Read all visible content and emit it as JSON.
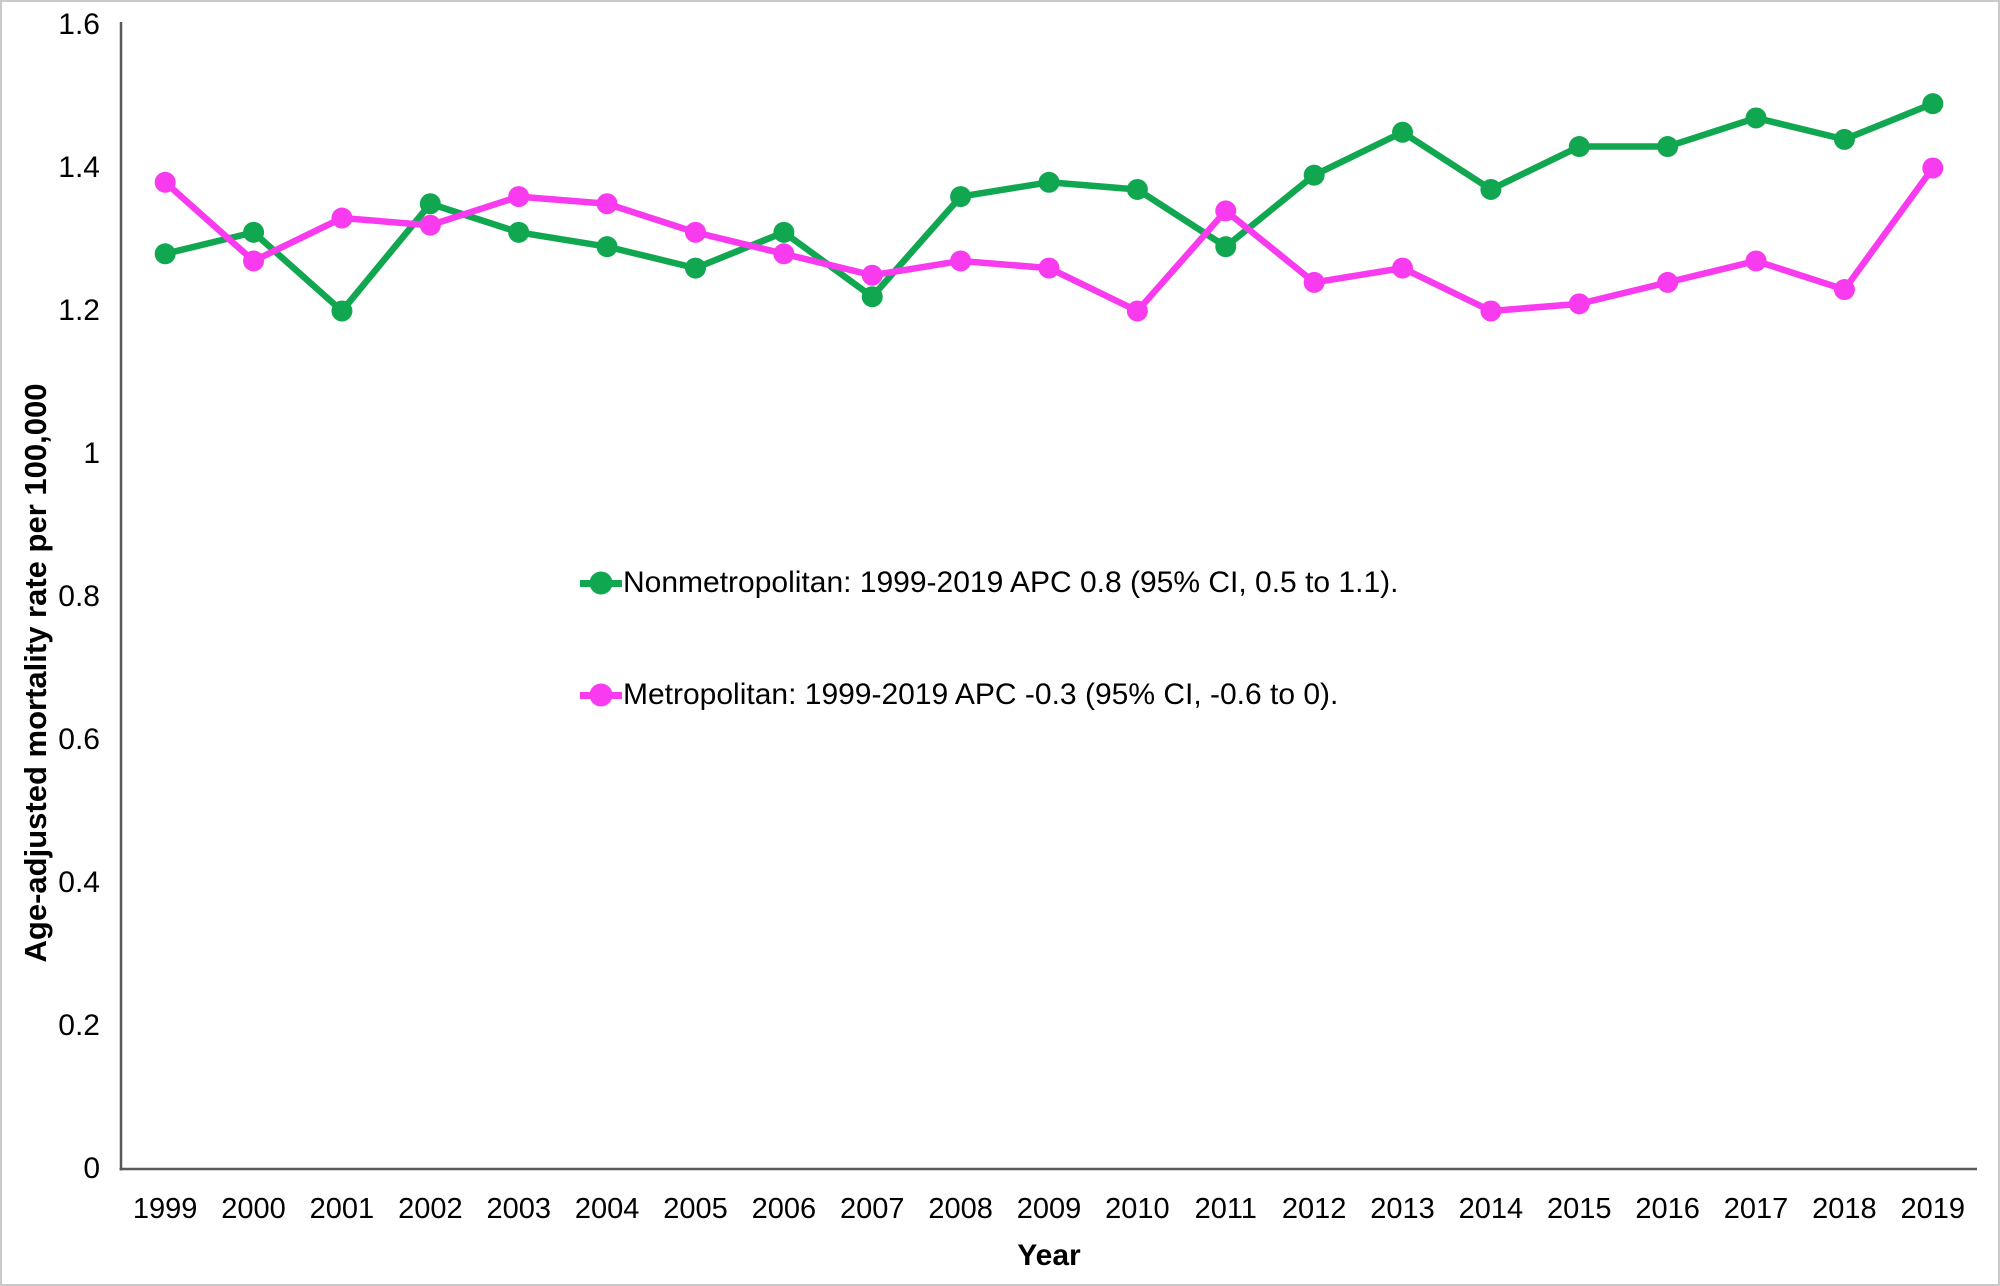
{
  "figure": {
    "background": "#ffffff",
    "border_color": "#c9c9c9",
    "axis_color": "#595959",
    "text_color": "#000000"
  },
  "chart_data": {
    "type": "line",
    "title": "",
    "xlabel": "Year",
    "ylabel": "Age-adjusted mortality rate per 100,000",
    "x": [
      "1999",
      "2000",
      "2001",
      "2002",
      "2003",
      "2004",
      "2005",
      "2006",
      "2007",
      "2008",
      "2009",
      "2010",
      "2011",
      "2012",
      "2013",
      "2014",
      "2015",
      "2016",
      "2017",
      "2018",
      "2019"
    ],
    "series": [
      {
        "name": "Nonmetropolitan",
        "legend_label": "Nonmetropolitan: 1999-2019 APC 0.8 (95% CI, 0.5 to 1.1).",
        "color": "#10a750",
        "values": [
          1.28,
          1.31,
          1.2,
          1.35,
          1.31,
          1.29,
          1.26,
          1.31,
          1.22,
          1.36,
          1.38,
          1.37,
          1.29,
          1.39,
          1.45,
          1.37,
          1.43,
          1.43,
          1.47,
          1.44,
          1.49
        ]
      },
      {
        "name": "Metropolitan",
        "legend_label": "Metropolitan: 1999-2019 APC -0.3 (95% CI, -0.6 to 0).",
        "color": "#f93bf0",
        "values": [
          1.38,
          1.27,
          1.33,
          1.32,
          1.36,
          1.35,
          1.31,
          1.28,
          1.25,
          1.27,
          1.26,
          1.2,
          1.34,
          1.24,
          1.26,
          1.2,
          1.21,
          1.24,
          1.27,
          1.23,
          1.4
        ]
      }
    ],
    "ylim": [
      0,
      1.6
    ],
    "yticks": [
      0,
      0.2,
      0.4,
      0.6,
      0.8,
      1,
      1.2,
      1.4,
      1.6
    ],
    "ytick_labels": [
      "0",
      "0.2",
      "0.4",
      "0.6",
      "0.8",
      "1",
      "1.2",
      "1.4",
      "1.6"
    ],
    "grid": false,
    "legend_position": "inside-plot-center-left",
    "marker": "circle",
    "line_width": 6.5,
    "marker_radius": 10.5
  }
}
